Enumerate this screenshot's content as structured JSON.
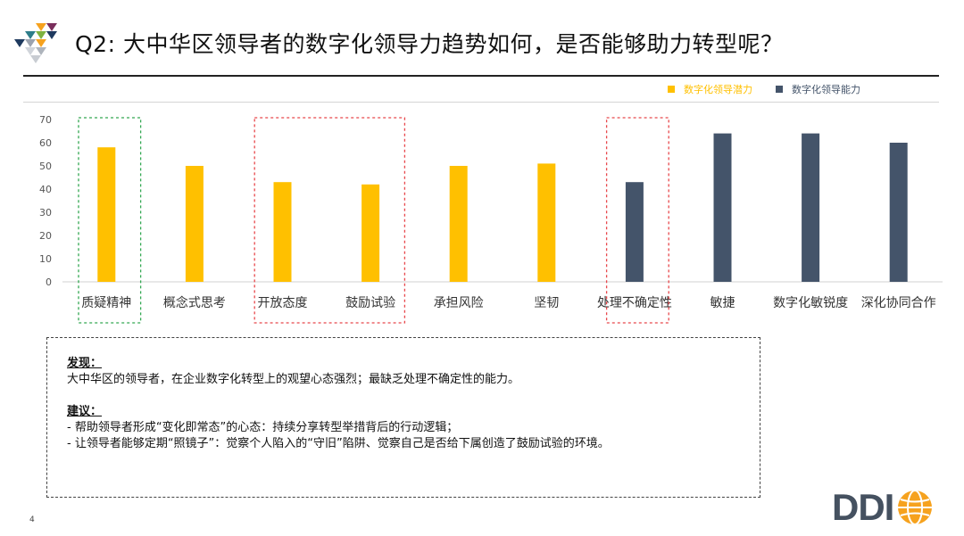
{
  "slide": {
    "title": "Q2: 大中华区领导者的数字化领导力趋势如何，是否能够助力转型呢？",
    "page_number": "4"
  },
  "legend": {
    "items": [
      {
        "label": "数字化领导潜力",
        "color": "#FFC000"
      },
      {
        "label": "数字化领导能力",
        "color": "#44546A"
      }
    ]
  },
  "chart_data": {
    "type": "bar",
    "categories": [
      "质疑精神",
      "概念式思考",
      "开放态度",
      "鼓励试验",
      "承担风险",
      "坚韧",
      "处理不确定性",
      "敏捷",
      "数字化敏锐度",
      "深化协同合作"
    ],
    "series": [
      {
        "name": "数字化领导潜力",
        "color": "#FFC000",
        "values": [
          58,
          50,
          43,
          42,
          50,
          51,
          null,
          null,
          null,
          null
        ]
      },
      {
        "name": "数字化领导能力",
        "color": "#44546A",
        "values": [
          null,
          null,
          null,
          null,
          null,
          null,
          43,
          64,
          64,
          60
        ]
      }
    ],
    "ylim": [
      0,
      70
    ],
    "yticks": [
      "0",
      "10",
      "20",
      "30",
      "40",
      "50",
      "60",
      "70"
    ],
    "gridlines": false,
    "legend_position": "top-right",
    "highlight_boxes": [
      {
        "categories": [
          "质疑精神"
        ],
        "color": "#33A852"
      },
      {
        "categories": [
          "开放态度",
          "鼓励试验"
        ],
        "color": "#E8474B"
      },
      {
        "categories": [
          "处理不确定性"
        ],
        "color": "#E8474B"
      }
    ]
  },
  "findings": {
    "heading": "发现：",
    "text": "大中华区的领导者，在企业数字化转型上的观望心态强烈；最缺乏处理不确定性的能力。"
  },
  "recommendations": {
    "heading": "建议：",
    "lines": [
      "- 帮助领导者形成“变化即常态”的心态：持续分享转型举措背后的行动逻辑；",
      "- 让领导者能够定期“照镜子”：觉察个人陷入的“守旧”陷阱、觉察自己是否给下属创造了鼓励试验的环境。"
    ]
  },
  "brand": {
    "logo_text": "DDI",
    "logo_icon": "globe-icon",
    "mark_icon": "triangle-mosaic-icon",
    "brand_color": "#455160",
    "accent_color": "#F6A21E"
  }
}
